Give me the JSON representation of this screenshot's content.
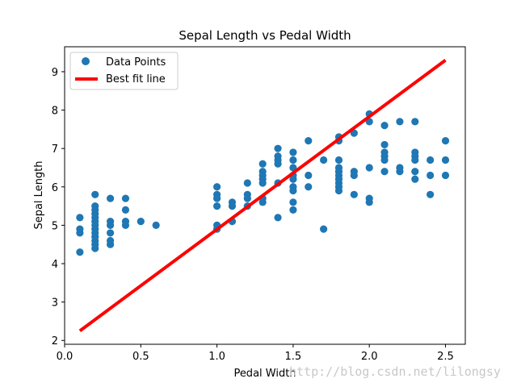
{
  "chart_data": {
    "type": "scatter",
    "title": "Sepal Length vs Pedal Width",
    "xlabel": "Pedal Width",
    "ylabel": "Sepal Length",
    "xlim": [
      0.0,
      2.63
    ],
    "ylim": [
      1.9,
      9.65
    ],
    "xticks": [
      0.0,
      0.5,
      1.0,
      1.5,
      2.0,
      2.5
    ],
    "xtick_labels": [
      "0.0",
      "0.5",
      "1.0",
      "1.5",
      "2.0",
      "2.5"
    ],
    "yticks": [
      2,
      3,
      4,
      5,
      6,
      7,
      8,
      9
    ],
    "ytick_labels": [
      "2",
      "3",
      "4",
      "5",
      "6",
      "7",
      "8",
      "9"
    ],
    "grid": false,
    "legend_position": "top-left",
    "series": [
      {
        "name": "Data Points",
        "kind": "scatter",
        "color": "#1f77b4",
        "points": [
          [
            0.1,
            5.2
          ],
          [
            0.1,
            4.9
          ],
          [
            0.1,
            4.8
          ],
          [
            0.1,
            4.3
          ],
          [
            0.2,
            5.8
          ],
          [
            0.2,
            5.5
          ],
          [
            0.2,
            5.4
          ],
          [
            0.2,
            5.3
          ],
          [
            0.2,
            5.2
          ],
          [
            0.2,
            5.1
          ],
          [
            0.2,
            5.0
          ],
          [
            0.2,
            4.9
          ],
          [
            0.2,
            4.8
          ],
          [
            0.2,
            4.7
          ],
          [
            0.2,
            4.6
          ],
          [
            0.2,
            4.5
          ],
          [
            0.2,
            4.4
          ],
          [
            0.3,
            5.7
          ],
          [
            0.3,
            5.1
          ],
          [
            0.3,
            5.0
          ],
          [
            0.3,
            4.8
          ],
          [
            0.3,
            4.6
          ],
          [
            0.3,
            4.5
          ],
          [
            0.4,
            5.7
          ],
          [
            0.4,
            5.4
          ],
          [
            0.4,
            5.1
          ],
          [
            0.4,
            5.0
          ],
          [
            0.5,
            5.1
          ],
          [
            0.6,
            5.0
          ],
          [
            1.0,
            6.0
          ],
          [
            1.0,
            5.8
          ],
          [
            1.0,
            5.7
          ],
          [
            1.0,
            5.5
          ],
          [
            1.0,
            5.0
          ],
          [
            1.0,
            4.9
          ],
          [
            1.1,
            5.6
          ],
          [
            1.1,
            5.5
          ],
          [
            1.1,
            5.1
          ],
          [
            1.2,
            6.1
          ],
          [
            1.2,
            5.8
          ],
          [
            1.2,
            5.7
          ],
          [
            1.2,
            5.5
          ],
          [
            1.3,
            6.6
          ],
          [
            1.3,
            6.4
          ],
          [
            1.3,
            6.3
          ],
          [
            1.3,
            6.2
          ],
          [
            1.3,
            6.1
          ],
          [
            1.3,
            5.7
          ],
          [
            1.3,
            5.6
          ],
          [
            1.4,
            7.0
          ],
          [
            1.4,
            6.8
          ],
          [
            1.4,
            6.7
          ],
          [
            1.4,
            6.6
          ],
          [
            1.4,
            6.1
          ],
          [
            1.4,
            5.2
          ],
          [
            1.5,
            6.9
          ],
          [
            1.5,
            6.7
          ],
          [
            1.5,
            6.5
          ],
          [
            1.5,
            6.3
          ],
          [
            1.5,
            6.2
          ],
          [
            1.5,
            6.0
          ],
          [
            1.5,
            5.9
          ],
          [
            1.5,
            5.6
          ],
          [
            1.5,
            5.4
          ],
          [
            1.6,
            7.2
          ],
          [
            1.6,
            6.3
          ],
          [
            1.6,
            6.0
          ],
          [
            1.7,
            6.7
          ],
          [
            1.7,
            4.9
          ],
          [
            1.8,
            7.3
          ],
          [
            1.8,
            7.2
          ],
          [
            1.8,
            6.7
          ],
          [
            1.8,
            6.5
          ],
          [
            1.8,
            6.4
          ],
          [
            1.8,
            6.3
          ],
          [
            1.8,
            6.2
          ],
          [
            1.8,
            6.1
          ],
          [
            1.8,
            6.0
          ],
          [
            1.8,
            5.9
          ],
          [
            1.9,
            7.4
          ],
          [
            1.9,
            6.4
          ],
          [
            1.9,
            6.3
          ],
          [
            1.9,
            5.8
          ],
          [
            2.0,
            7.9
          ],
          [
            2.0,
            7.7
          ],
          [
            2.0,
            6.5
          ],
          [
            2.0,
            5.7
          ],
          [
            2.0,
            5.6
          ],
          [
            2.1,
            7.6
          ],
          [
            2.1,
            7.1
          ],
          [
            2.1,
            6.9
          ],
          [
            2.1,
            6.8
          ],
          [
            2.1,
            6.7
          ],
          [
            2.1,
            6.4
          ],
          [
            2.2,
            7.7
          ],
          [
            2.2,
            6.5
          ],
          [
            2.2,
            6.4
          ],
          [
            2.3,
            7.7
          ],
          [
            2.3,
            6.9
          ],
          [
            2.3,
            6.8
          ],
          [
            2.3,
            6.7
          ],
          [
            2.3,
            6.4
          ],
          [
            2.3,
            6.2
          ],
          [
            2.4,
            6.7
          ],
          [
            2.4,
            6.3
          ],
          [
            2.4,
            5.8
          ],
          [
            2.5,
            7.2
          ],
          [
            2.5,
            6.7
          ],
          [
            2.5,
            6.3
          ]
        ]
      },
      {
        "name": "Best fit line",
        "kind": "line",
        "color": "#ff0000",
        "points": [
          [
            0.1,
            2.25
          ],
          [
            2.5,
            9.3
          ]
        ]
      }
    ],
    "watermark": "http://blog.csdn.net/lilongsy"
  }
}
